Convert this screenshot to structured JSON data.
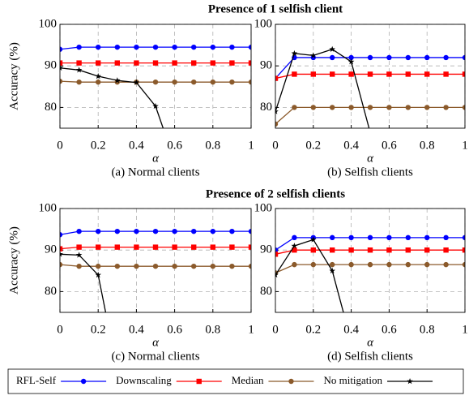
{
  "section_titles": [
    "Presence of 1 selfish client",
    "Presence of 2 selfish clients"
  ],
  "chart_data": [
    {
      "type": "line",
      "caption": "(a) Normal clients",
      "xlabel": "α",
      "ylabel": "Accuracy (%)",
      "x": [
        0,
        0.1,
        0.2,
        0.3,
        0.4,
        0.5,
        0.6,
        0.7,
        0.8,
        0.9,
        1
      ],
      "xlim": [
        0,
        1
      ],
      "ylim": [
        75,
        100
      ],
      "xticks": [
        0,
        0.2,
        0.4,
        0.6,
        0.8,
        1
      ],
      "yticks": [
        80,
        90,
        100
      ],
      "grid": true,
      "series": [
        {
          "name": "RFL-Self",
          "color": "#0000ff",
          "marker": "circle",
          "values": [
            94,
            94.5,
            94.5,
            94.5,
            94.5,
            94.5,
            94.5,
            94.5,
            94.5,
            94.5,
            94.5
          ]
        },
        {
          "name": "Downscaling",
          "color": "#ff0000",
          "marker": "square",
          "values": [
            90.7,
            90.7,
            90.7,
            90.7,
            90.7,
            90.7,
            90.7,
            90.7,
            90.7,
            90.7,
            90.7
          ]
        },
        {
          "name": "Median",
          "color": "#8b5a2b",
          "marker": "circle",
          "values": [
            86.3,
            86.1,
            86.1,
            86.1,
            86.1,
            86.1,
            86.1,
            86.1,
            86.1,
            86.1,
            86.1
          ]
        },
        {
          "name": "No mitigation",
          "color": "#000000",
          "marker": "star",
          "values": [
            89.5,
            89,
            87.5,
            86.5,
            86,
            80.3,
            67,
            null,
            null,
            null,
            null
          ]
        }
      ]
    },
    {
      "type": "line",
      "caption": "(b) Selfish clients",
      "xlabel": "α",
      "x": [
        0,
        0.1,
        0.2,
        0.3,
        0.4,
        0.5,
        0.6,
        0.7,
        0.8,
        0.9,
        1
      ],
      "xlim": [
        0,
        1
      ],
      "ylim": [
        75,
        100
      ],
      "xticks": [
        0,
        0.2,
        0.4,
        0.6,
        0.8,
        1
      ],
      "yticks": [
        80,
        90,
        100
      ],
      "grid": true,
      "series": [
        {
          "name": "RFL-Self",
          "color": "#0000ff",
          "marker": "circle",
          "values": [
            87,
            92,
            92,
            92,
            92,
            92,
            92,
            92,
            92,
            92,
            92
          ]
        },
        {
          "name": "Downscaling",
          "color": "#ff0000",
          "marker": "square",
          "values": [
            87,
            88,
            88,
            88,
            88,
            88,
            88,
            88,
            88,
            88,
            88
          ]
        },
        {
          "name": "Median",
          "color": "#8b5a2b",
          "marker": "circle",
          "values": [
            76,
            80,
            80,
            80,
            80,
            80,
            80,
            80,
            80,
            80,
            80
          ]
        },
        {
          "name": "No mitigation",
          "color": "#000000",
          "marker": "star",
          "values": [
            79,
            93,
            92.5,
            94,
            91,
            74,
            null,
            null,
            null,
            null,
            null
          ]
        }
      ]
    },
    {
      "type": "line",
      "caption": "(c) Normal clients",
      "xlabel": "α",
      "ylabel": "Accuracy (%)",
      "x": [
        0,
        0.1,
        0.2,
        0.3,
        0.4,
        0.5,
        0.6,
        0.7,
        0.8,
        0.9,
        1
      ],
      "xlim": [
        0,
        1
      ],
      "ylim": [
        75,
        100
      ],
      "xticks": [
        0,
        0.2,
        0.4,
        0.6,
        0.8,
        1
      ],
      "yticks": [
        80,
        90,
        100
      ],
      "grid": true,
      "series": [
        {
          "name": "RFL-Self",
          "color": "#0000ff",
          "marker": "circle",
          "values": [
            93.7,
            94.5,
            94.5,
            94.5,
            94.5,
            94.5,
            94.5,
            94.5,
            94.5,
            94.5,
            94.5
          ]
        },
        {
          "name": "Downscaling",
          "color": "#ff0000",
          "marker": "square",
          "values": [
            90.3,
            90.7,
            90.7,
            90.7,
            90.7,
            90.7,
            90.7,
            90.7,
            90.7,
            90.7,
            90.7
          ]
        },
        {
          "name": "Median",
          "color": "#8b5a2b",
          "marker": "circle",
          "values": [
            86.5,
            86.1,
            86.1,
            86.1,
            86.1,
            86.1,
            86.1,
            86.1,
            86.1,
            86.1,
            86.1
          ]
        },
        {
          "name": "No mitigation",
          "color": "#000000",
          "marker": "star",
          "values": [
            89,
            88.8,
            84,
            61,
            null,
            null,
            null,
            null,
            null,
            null,
            null
          ]
        }
      ]
    },
    {
      "type": "line",
      "caption": "(d) Selfish clients",
      "xlabel": "α",
      "x": [
        0,
        0.1,
        0.2,
        0.3,
        0.4,
        0.5,
        0.6,
        0.7,
        0.8,
        0.9,
        1
      ],
      "xlim": [
        0,
        1
      ],
      "ylim": [
        75,
        100
      ],
      "xticks": [
        0,
        0.2,
        0.4,
        0.6,
        0.8,
        1
      ],
      "yticks": [
        80,
        90,
        100
      ],
      "grid": true,
      "series": [
        {
          "name": "RFL-Self",
          "color": "#0000ff",
          "marker": "circle",
          "values": [
            90,
            93,
            93,
            93,
            93,
            93,
            93,
            93,
            93,
            93,
            93
          ]
        },
        {
          "name": "Downscaling",
          "color": "#ff0000",
          "marker": "square",
          "values": [
            89,
            90,
            90,
            90,
            90,
            90,
            90,
            90,
            90,
            90,
            90
          ]
        },
        {
          "name": "Median",
          "color": "#8b5a2b",
          "marker": "circle",
          "values": [
            84.5,
            86.5,
            86.5,
            86.5,
            86.5,
            86.5,
            86.5,
            86.5,
            86.5,
            86.5,
            86.5
          ]
        },
        {
          "name": "No mitigation",
          "color": "#000000",
          "marker": "star",
          "values": [
            84,
            91,
            92.5,
            85,
            68,
            null,
            null,
            null,
            null,
            null,
            null
          ]
        }
      ]
    }
  ]
}
